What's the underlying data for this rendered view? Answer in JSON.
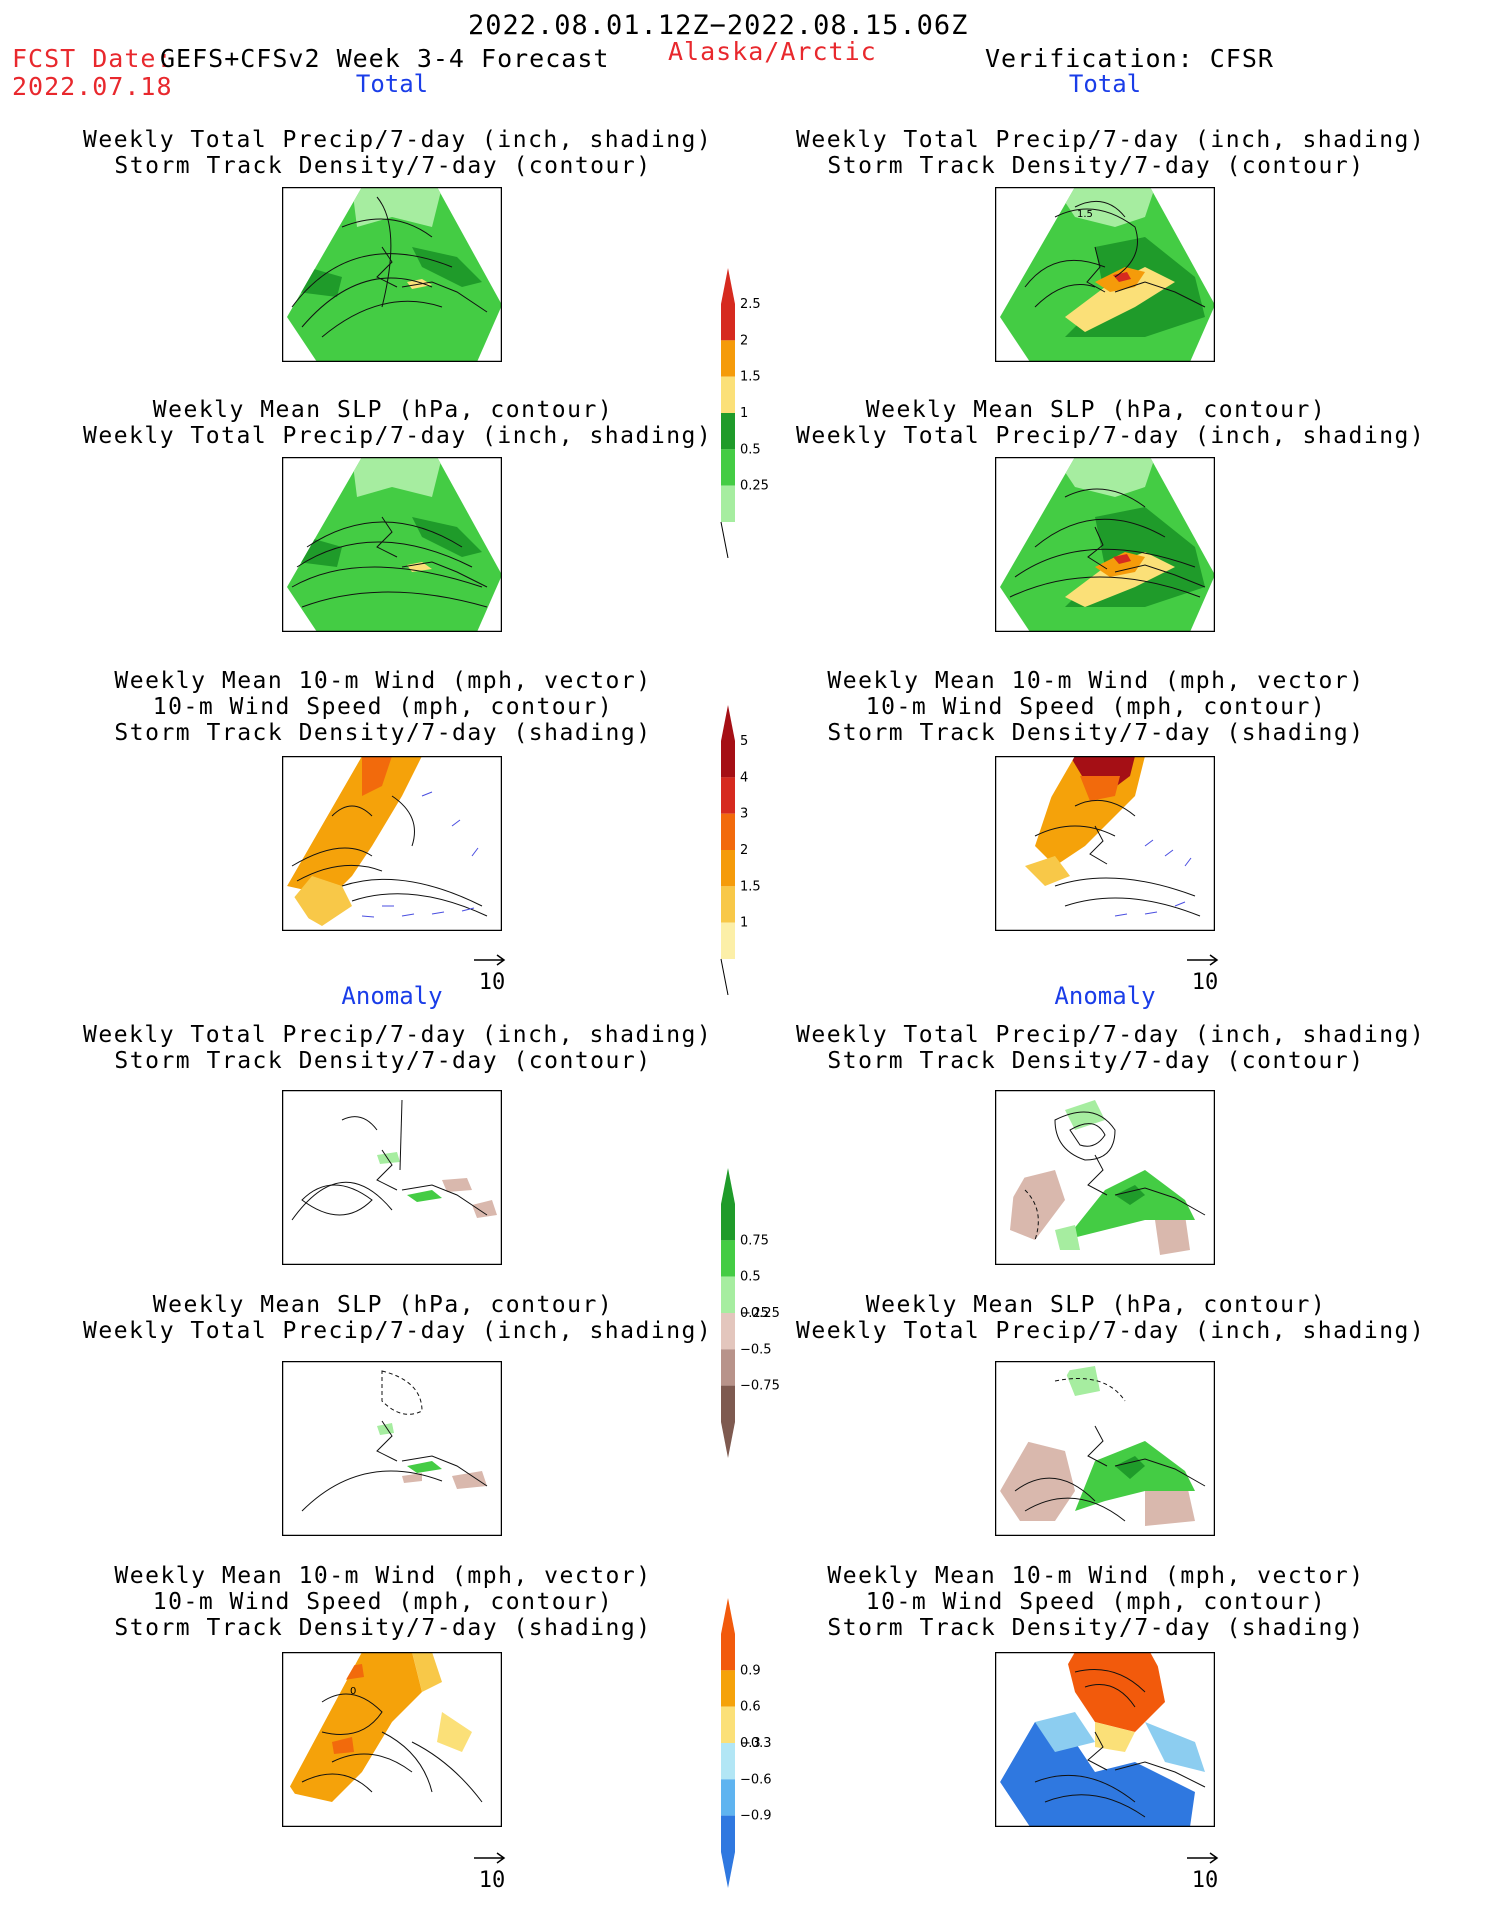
{
  "header": {
    "date_range": "2022.08.01.12Z−2022.08.15.06Z",
    "fcst_label": "FCST Date:",
    "fcst_model": "GEFS+CFSv2 Week 3-4 Forecast",
    "fcst_date": "2022.07.18",
    "region": "Alaska/Arctic",
    "verification": "Verification: CFSR"
  },
  "sections": {
    "total": "Total",
    "anomaly": "Anomaly"
  },
  "panel_titles": {
    "precip_std": "Weekly Total Precip/7-day (inch, shading)\nStorm Track Density/7-day (contour)",
    "slp_precip": "Weekly Mean SLP (hPa, contour)\nWeekly Total Precip/7-day (inch, shading)",
    "wind_std": "Weekly Mean 10-m Wind (mph, vector)\n10-m Wind Speed (mph, contour)\nStorm Track Density/7-day (shading)"
  },
  "vector_reference": "10",
  "map_annotations": {
    "verif_precip_contour": "1.5",
    "fcst_wind_anom_contour": "0"
  },
  "colorbars": {
    "precip_total": {
      "labels": [
        "2.5",
        "2",
        "1.5",
        "1",
        "0.5",
        "0.25"
      ],
      "colors": [
        "#d62a1f",
        "#f59b0a",
        "#fbe078",
        "#1f9b2a",
        "#44cc44",
        "#a6eda0"
      ]
    },
    "std_total": {
      "labels": [
        "5",
        "4",
        "3",
        "2",
        "1.5",
        "1"
      ],
      "colors": [
        "#a50f15",
        "#d62a1f",
        "#f26a0c",
        "#f59b0a",
        "#f8c848",
        "#fcefa8"
      ]
    },
    "precip_anom": {
      "labels": [
        "0.75",
        "0.5",
        "0.25",
        "−0.25",
        "−0.5",
        "−0.75"
      ],
      "colors": [
        "#1f9b2a",
        "#44cc44",
        "#a6eda0",
        "#e3c6bd",
        "#b8938a",
        "#7e5a50"
      ]
    },
    "std_anom": {
      "labels": [
        "0.9",
        "0.6",
        "0.3",
        "−0.3",
        "−0.6",
        "−0.9"
      ],
      "colors": [
        "#f25a0c",
        "#f5a20a",
        "#fbe078",
        "#b2e6f5",
        "#5fb4f0",
        "#2f78e0"
      ]
    }
  },
  "map_colors": {
    "precip_green": "#44cc44",
    "precip_dark_green": "#1f9b2a",
    "precip_light_green": "#a6eda0",
    "precip_heavy": "#f59b0a",
    "precip_max": "#d62a1f",
    "std_orange": "#f5a20a",
    "std_dark_orange": "#f26a0c",
    "std_red": "#a50f15",
    "anom_brown": "#d9b8ad",
    "anom_blue": "#2f78e0",
    "anom_light_blue": "#8ccdf0",
    "vector_blue": "#4a4ee0"
  }
}
